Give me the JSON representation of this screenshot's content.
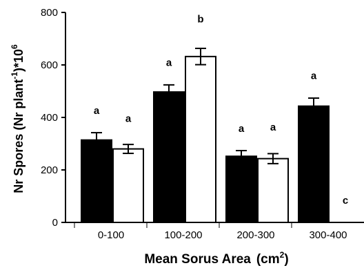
{
  "chart_data": {
    "type": "bar",
    "xlabel": "Mean Sorus Area",
    "xlabel_unit_base": "(cm",
    "xlabel_unit_exp": "2",
    "xlabel_unit_close": ")",
    "ylabel_prefix": "Nr Spores (Nr plant",
    "ylabel_exp1": "-1",
    "ylabel_mid": ")*10",
    "ylabel_exp2": "6",
    "ylim": [
      0,
      800
    ],
    "yticks": [
      "0",
      "200",
      "400",
      "600",
      "800"
    ],
    "ytick_values": [
      0,
      200,
      400,
      600,
      800
    ],
    "categories": [
      "0-100",
      "100-200",
      "200-300",
      "300-400"
    ],
    "series": [
      {
        "color": "#000000",
        "values": [
          314,
          497,
          252,
          443
        ],
        "errors": [
          31,
          30,
          24,
          34
        ],
        "error_dir": [
          "up",
          "up",
          "up",
          "up"
        ],
        "sig": [
          "a",
          "a",
          "a",
          "a"
        ]
      },
      {
        "color": "#ffffff",
        "values": [
          280,
          632,
          243,
          0
        ],
        "errors": [
          34,
          62,
          38,
          0
        ],
        "error_dir": [
          "both",
          "both",
          "both",
          "none"
        ],
        "sig": [
          "a",
          "b",
          "a",
          "c"
        ]
      }
    ],
    "legend": "none",
    "grid": false
  }
}
